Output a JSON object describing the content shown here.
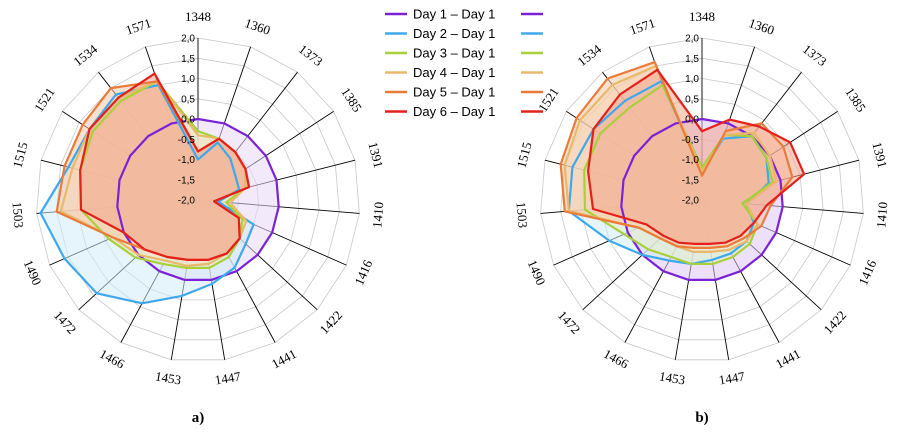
{
  "chart_data": [
    {
      "type": "radar",
      "panel_label": "a)",
      "axes": [
        "1348",
        "1360",
        "1373",
        "1385",
        "1391",
        "1410",
        "1416",
        "1422",
        "1441",
        "1447",
        "1453",
        "1466",
        "1472",
        "1490",
        "1503",
        "1515",
        "1521",
        "1534",
        "1571"
      ],
      "rlim": [
        -2.0,
        2.0
      ],
      "ticks": [
        "2,0",
        "1,5",
        "1,0",
        "0,5",
        "0,0",
        "-0,5",
        "-1,0",
        "-1,5",
        "-2,0"
      ],
      "series": [
        {
          "name": "Day 1 – Day 1",
          "color": "#7b22d6",
          "fill": "#e8d8f6",
          "values": [
            0,
            0,
            0,
            0,
            0,
            0,
            0,
            0,
            0,
            0,
            0,
            0,
            0,
            0,
            0,
            0,
            0,
            0,
            0
          ]
        },
        {
          "name": "Day 2 – Day 1",
          "color": "#3ea8ec",
          "fill": "#d2ebfa",
          "values": [
            -1.0,
            -0.5,
            -0.7,
            -0.9,
            -0.95,
            -1.5,
            -0.5,
            -0.4,
            -0.1,
            0.1,
            0.4,
            0.9,
            1.4,
            1.6,
            1.9,
            1.3,
            1.2,
            1.3,
            1.0
          ]
        },
        {
          "name": "Day 3 – Day 1",
          "color": "#a9cf3a",
          "fill": "#e5f0c4",
          "values": [
            -0.3,
            -0.4,
            -0.5,
            -0.6,
            -0.8,
            -1.3,
            -0.8,
            -0.6,
            -0.4,
            -0.3,
            -0.3,
            -0.2,
            0.1,
            0.4,
            0.9,
            1.0,
            1.1,
            1.1,
            1.1
          ]
        },
        {
          "name": "Day 4 – Day 1",
          "color": "#e8b96a",
          "fill": "#f5e2bf",
          "values": [
            -0.4,
            -0.4,
            -0.5,
            -0.6,
            -0.8,
            -1.2,
            -0.7,
            -0.6,
            -0.5,
            -0.4,
            -0.35,
            -0.3,
            0.0,
            0.3,
            1.4,
            1.2,
            1.2,
            1.2,
            1.1
          ]
        },
        {
          "name": "Day 5 – Day 1",
          "color": "#e97c3a",
          "fill": "#f6c7a6",
          "values": [
            -0.8,
            -0.4,
            -0.5,
            -0.6,
            -0.7,
            -1.6,
            -0.9,
            -0.6,
            -0.5,
            -0.5,
            -0.5,
            -0.4,
            -0.2,
            0.3,
            1.5,
            1.4,
            1.4,
            1.5,
            1.1
          ]
        },
        {
          "name": "Day 6 – Day 1",
          "color": "#e3201b",
          "fill": "#f2a58c",
          "values": [
            -0.8,
            -0.4,
            -0.5,
            -0.6,
            -0.7,
            -1.6,
            -0.9,
            -0.6,
            -0.5,
            -0.5,
            -0.5,
            -0.4,
            -0.2,
            0.0,
            0.9,
            1.0,
            1.2,
            1.2,
            1.3
          ]
        }
      ]
    },
    {
      "type": "radar",
      "panel_label": "b)",
      "axes": [
        "1348",
        "1360",
        "1373",
        "1385",
        "1391",
        "1410",
        "1416",
        "1422",
        "1441",
        "1447",
        "1453",
        "1466",
        "1472",
        "1490",
        "1503",
        "1515",
        "1521",
        "1534",
        "1571"
      ],
      "rlim": [
        -2.0,
        2.0
      ],
      "ticks": [
        "2,0",
        "1,5",
        "1,0",
        "0,5",
        "0,0",
        "-0,5",
        "-1,0",
        "-1,5",
        "-2,0"
      ],
      "series": [
        {
          "name": "Day 1 – Day 1",
          "color": "#7b22d6",
          "fill": "#dcc6f6",
          "values": [
            0,
            0,
            0,
            0,
            0,
            0,
            0,
            0,
            0,
            0,
            0,
            0,
            0,
            0,
            0,
            0,
            0,
            0,
            0
          ]
        },
        {
          "name": "Day 2 – Day 1",
          "color": "#3ea8ec",
          "fill": "#d2ebfa",
          "values": [
            -1.3,
            -0.4,
            0.0,
            -0.1,
            -0.3,
            -0.9,
            -0.6,
            -0.5,
            -0.5,
            -0.5,
            -0.4,
            -0.3,
            0.0,
            0.5,
            1.3,
            1.3,
            1.2,
            1.1,
            1.1
          ]
        },
        {
          "name": "Day 3 – Day 1",
          "color": "#a9cf3a",
          "fill": "#e5f0c4",
          "values": [
            -1.2,
            -0.3,
            0.0,
            -0.1,
            -0.2,
            -1.0,
            -0.5,
            -0.4,
            -0.4,
            -0.4,
            -0.4,
            -0.4,
            -0.2,
            0.1,
            0.9,
            1.0,
            1.0,
            0.9,
            1.0
          ]
        },
        {
          "name": "Day 4 – Day 1",
          "color": "#e8b96a",
          "fill": "#f5e2bf",
          "values": [
            -1.3,
            -0.3,
            0.1,
            0.0,
            -0.1,
            -0.9,
            -0.5,
            -0.5,
            -0.6,
            -0.7,
            -0.7,
            -0.7,
            -0.6,
            -0.3,
            1.3,
            1.5,
            1.6,
            1.6,
            1.5
          ]
        },
        {
          "name": "Day 5 – Day 1",
          "color": "#e97c3a",
          "fill": "#f6c7a6",
          "values": [
            -1.4,
            -0.2,
            0.4,
            0.4,
            0.3,
            -0.3,
            -0.4,
            -0.6,
            -0.7,
            -0.8,
            -0.8,
            -0.7,
            -0.6,
            -0.3,
            1.4,
            1.6,
            1.7,
            1.8,
            1.6
          ]
        },
        {
          "name": "Day 6 – Day 1",
          "color": "#e3201b",
          "fill": "#f2a58c",
          "values": [
            -0.3,
            0.1,
            0.3,
            0.6,
            0.6,
            -0.4,
            -0.6,
            -0.7,
            -0.8,
            -0.9,
            -0.9,
            -0.8,
            -0.7,
            -0.5,
            0.7,
            0.9,
            1.2,
            1.3,
            1.4
          ]
        }
      ]
    }
  ],
  "legend": {
    "position": "top-center",
    "items": [
      "Day 1 – Day 1",
      "Day 2 – Day 1",
      "Day 3 – Day 1",
      "Day 4 – Day 1",
      "Day 5 – Day 1",
      "Day 6 – Day 1"
    ],
    "colors": [
      "#7b22d6",
      "#3ea8ec",
      "#a9cf3a",
      "#e8b96a",
      "#e97c3a",
      "#e3201b"
    ]
  }
}
